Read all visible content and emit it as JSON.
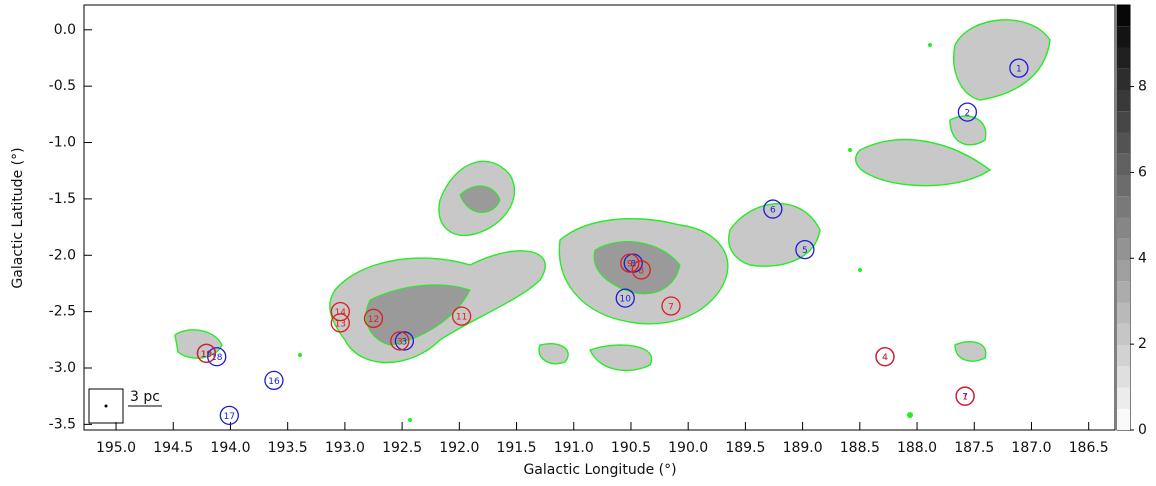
{
  "chart_data": {
    "type": "scatter",
    "x_label": "Galactic Longitude (°)",
    "y_label": "Galactic Latitude (°)",
    "xlim": [
      195.28,
      186.27
    ],
    "ylim": [
      -3.55,
      0.22
    ],
    "xticks": [
      {
        "value": 195,
        "label": "195.0"
      },
      194.5,
      {
        "value": 194,
        "label": "194.0"
      },
      193.5,
      {
        "value": 193,
        "label": "193.0"
      },
      192.5,
      {
        "value": 192,
        "label": "192.0"
      },
      191.5,
      {
        "value": 191,
        "label": "191.0"
      },
      190.5,
      {
        "value": 190,
        "label": "190.0"
      },
      189.5,
      {
        "value": 189,
        "label": "189.0"
      },
      188.5,
      {
        "value": 188,
        "label": "188.0"
      },
      187.5,
      {
        "value": 187,
        "label": "187.0"
      },
      186.5
    ],
    "yticks": [
      {
        "value": 0,
        "label": "0.0"
      },
      -0.5,
      {
        "value": -1,
        "label": "-1.0"
      },
      -1.5,
      {
        "value": -2,
        "label": "-2.0"
      },
      -2.5,
      {
        "value": -3,
        "label": "-3.0"
      },
      -3.5
    ],
    "series": [
      {
        "color": "#1c1cd8",
        "labels": [
          "1",
          "2",
          "3",
          "4",
          "5",
          "6",
          "8",
          "10",
          "16",
          "17",
          "18",
          "19",
          "7"
        ],
        "x": [
          187.11,
          187.56,
          192.48,
          188.28,
          188.98,
          189.26,
          190.48,
          190.55,
          193.62,
          194.01,
          194.12,
          194.21,
          187.58
        ],
        "values": [
          -0.34,
          -0.73,
          -2.76,
          -2.9,
          -1.95,
          -1.59,
          -2.07,
          -2.38,
          -3.11,
          -3.42,
          -2.9,
          -2.87,
          -3.25
        ]
      },
      {
        "color": "#e01c1c",
        "labels": [
          "19",
          "14",
          "13",
          "12",
          "11",
          "3",
          "9",
          "8",
          "7",
          "4",
          "1"
        ],
        "x": [
          194.21,
          193.04,
          193.04,
          192.75,
          191.98,
          192.52,
          190.51,
          190.41,
          190.15,
          188.28,
          187.58
        ],
        "values": [
          -2.87,
          -2.5,
          -2.6,
          -2.56,
          -2.54,
          -2.76,
          -2.07,
          -2.13,
          -2.45,
          -2.9,
          -3.25
        ]
      }
    ],
    "clim": [
      0,
      9.9
    ],
    "cticks": [
      0,
      2,
      4,
      6,
      8
    ],
    "scale_bar": "3 pc"
  }
}
